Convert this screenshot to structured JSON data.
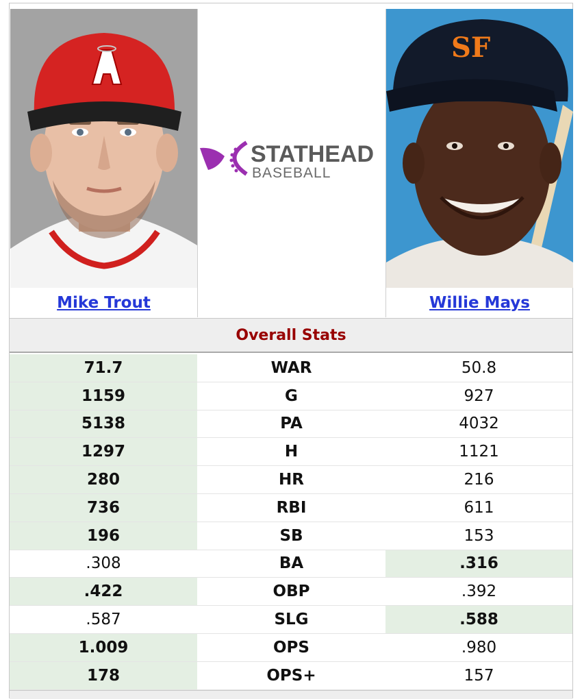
{
  "players": {
    "left": {
      "name": "Mike Trout",
      "photo_icon": "player-photo-icon"
    },
    "right": {
      "name": "Willie Mays",
      "photo_icon": "player-photo-icon"
    }
  },
  "logo": {
    "word1": "STATHEAD",
    "word2": "BASEBALL",
    "accent_color": "#9b2fb0"
  },
  "section_title": "Overall Stats",
  "colors": {
    "win_cell": "#e4efe3",
    "header_text": "#980000",
    "link": "#2538d8"
  },
  "stats": [
    {
      "label": "WAR",
      "left": "71.7",
      "right": "50.8",
      "winner": "left"
    },
    {
      "label": "G",
      "left": "1159",
      "right": "927",
      "winner": "left"
    },
    {
      "label": "PA",
      "left": "5138",
      "right": "4032",
      "winner": "left"
    },
    {
      "label": "H",
      "left": "1297",
      "right": "1121",
      "winner": "left"
    },
    {
      "label": "HR",
      "left": "280",
      "right": "216",
      "winner": "left"
    },
    {
      "label": "RBI",
      "left": "736",
      "right": "611",
      "winner": "left"
    },
    {
      "label": "SB",
      "left": "196",
      "right": "153",
      "winner": "left"
    },
    {
      "label": "BA",
      "left": ".308",
      "right": ".316",
      "winner": "right"
    },
    {
      "label": "OBP",
      "left": ".422",
      "right": ".392",
      "winner": "left"
    },
    {
      "label": "SLG",
      "left": ".587",
      "right": ".588",
      "winner": "right"
    },
    {
      "label": "OPS",
      "left": "1.009",
      "right": ".980",
      "winner": "left"
    },
    {
      "label": "OPS+",
      "left": "178",
      "right": "157",
      "winner": "left"
    }
  ]
}
